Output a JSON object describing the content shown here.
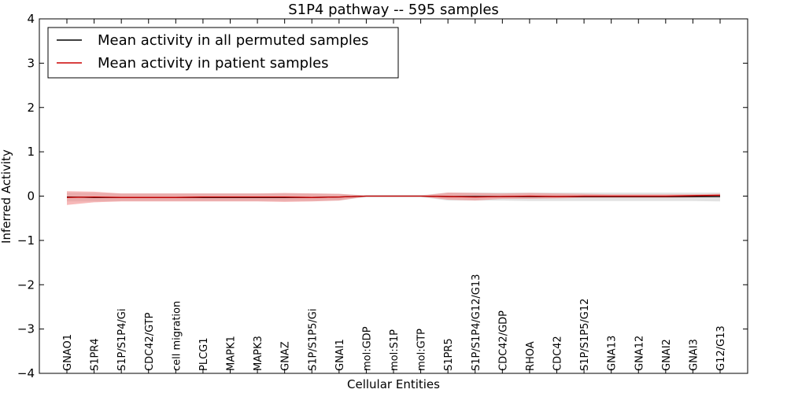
{
  "chart_data": {
    "type": "line",
    "title": "S1P4 pathway -- 595 samples",
    "xlabel": "Cellular Entities",
    "ylabel": "Inferred Activity",
    "ylim": [
      -4,
      4
    ],
    "yticks": [
      4,
      3,
      2,
      1,
      0,
      -1,
      -2,
      -3,
      -4
    ],
    "ytick_labels": [
      "4",
      "3",
      "2",
      "1",
      "0",
      "−1",
      "−2",
      "−3",
      "−4"
    ],
    "categories": [
      "GNAO1",
      "S1PR4",
      "S1P/S1P4/Gi",
      "CDC42/GTP",
      "cell migration",
      "PLCG1",
      "MAPK1",
      "MAPK3",
      "GNAZ",
      "S1P/S1P5/Gi",
      "GNAI1",
      "mol:GDP",
      "mol:S1P",
      "mol:GTP",
      "S1PR5",
      "S1P/S1P4/G12/G13",
      "CDC42/GDP",
      "RHOA",
      "CDC42",
      "S1P/S1P5/G12",
      "GNA13",
      "GNA12",
      "GNAI2",
      "GNAI3",
      "G12/G13"
    ],
    "legend": {
      "location": "top-left",
      "entries": [
        "Mean activity in all permuted samples",
        "Mean activity in patient samples"
      ]
    },
    "series": [
      {
        "name": "Mean activity in all permuted samples",
        "color": "#000000",
        "band_color": "#bfbfbf",
        "values": [
          -0.02,
          -0.03,
          -0.03,
          -0.03,
          -0.03,
          -0.03,
          -0.03,
          -0.03,
          -0.03,
          -0.03,
          -0.02,
          0.0,
          0.0,
          0.0,
          -0.01,
          -0.01,
          -0.01,
          -0.01,
          -0.01,
          -0.01,
          -0.01,
          -0.01,
          -0.01,
          -0.01,
          -0.01
        ],
        "band_upper": [
          0.08,
          0.07,
          0.06,
          0.06,
          0.06,
          0.06,
          0.06,
          0.06,
          0.06,
          0.06,
          0.05,
          0.02,
          0.02,
          0.02,
          0.08,
          0.08,
          0.08,
          0.08,
          0.08,
          0.08,
          0.08,
          0.08,
          0.08,
          0.08,
          0.08
        ],
        "band_lower": [
          -0.12,
          -0.12,
          -0.11,
          -0.11,
          -0.11,
          -0.11,
          -0.11,
          -0.11,
          -0.11,
          -0.11,
          -0.1,
          -0.02,
          -0.02,
          -0.02,
          -0.1,
          -0.1,
          -0.1,
          -0.11,
          -0.11,
          -0.11,
          -0.11,
          -0.11,
          -0.11,
          -0.11,
          -0.12
        ]
      },
      {
        "name": "Mean activity in patient samples",
        "color": "#cc0000",
        "band_color": "#f08080",
        "values": [
          -0.03,
          -0.02,
          -0.03,
          -0.03,
          -0.03,
          -0.02,
          -0.02,
          -0.02,
          -0.02,
          -0.03,
          -0.02,
          0.0,
          0.0,
          0.0,
          -0.01,
          -0.02,
          -0.01,
          0.0,
          -0.01,
          0.0,
          0.0,
          0.0,
          0.0,
          0.01,
          0.02
        ],
        "band_upper": [
          0.11,
          0.1,
          0.06,
          0.06,
          0.06,
          0.06,
          0.06,
          0.06,
          0.07,
          0.06,
          0.05,
          0.01,
          0.01,
          0.01,
          0.08,
          0.07,
          0.06,
          0.07,
          0.06,
          0.05,
          0.04,
          0.04,
          0.04,
          0.04,
          0.05
        ],
        "band_lower": [
          -0.2,
          -0.14,
          -0.12,
          -0.12,
          -0.12,
          -0.12,
          -0.12,
          -0.12,
          -0.13,
          -0.12,
          -0.1,
          -0.01,
          -0.01,
          -0.01,
          -0.08,
          -0.1,
          -0.06,
          -0.06,
          -0.05,
          -0.04,
          -0.04,
          -0.04,
          -0.04,
          -0.03,
          -0.02
        ]
      }
    ]
  }
}
